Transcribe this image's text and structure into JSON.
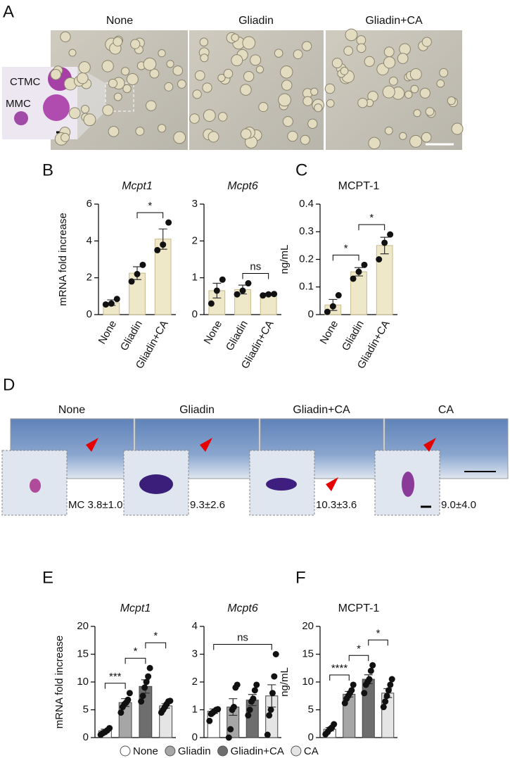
{
  "panel_labels": [
    "A",
    "B",
    "C",
    "D",
    "E",
    "F"
  ],
  "panel_a": {
    "titles": [
      "None",
      "Gliadin",
      "Gliadin+CA"
    ],
    "inset_labels": [
      "CTMC",
      "MMC"
    ]
  },
  "panel_d": {
    "titles": [
      "None",
      "Gliadin",
      "Gliadin+CA",
      "CA"
    ],
    "counts": [
      "MC 3.8±1.0",
      "9.3±2.6",
      "10.3±3.6",
      "9.0±4.0"
    ]
  },
  "legend": {
    "names": [
      "None",
      "Gliadin",
      "Gliadin+CA",
      "CA"
    ],
    "colors": [
      "#ffffff",
      "#a6a6a6",
      "#6e6e6e",
      "#e5e5e5"
    ]
  },
  "chart_data": [
    {
      "type": "bar",
      "title": "Mcpt1",
      "ylabel": "mRNA fold increase",
      "categories": [
        "None",
        "Gliadin",
        "Gliadin+CA"
      ],
      "values": [
        0.65,
        2.25,
        4.1
      ],
      "errors": [
        0.15,
        0.35,
        0.55
      ],
      "points": [
        [
          0.55,
          0.6,
          0.85
        ],
        [
          1.8,
          2.2,
          2.7
        ],
        [
          3.5,
          3.8,
          5.0
        ]
      ],
      "color": "#efe8c8",
      "ylim": [
        0,
        6
      ],
      "yticks": [
        0,
        2,
        4,
        6
      ],
      "significance": [
        {
          "pair": [
            1,
            2
          ],
          "label": "*"
        }
      ]
    },
    {
      "type": "bar",
      "title": "Mcpt6",
      "categories": [
        "None",
        "Gliadin",
        "Gliadin+CA"
      ],
      "values": [
        0.65,
        0.68,
        0.55
      ],
      "errors": [
        0.2,
        0.12,
        0.03
      ],
      "points": [
        [
          0.3,
          0.65,
          0.95
        ],
        [
          0.55,
          0.65,
          0.85
        ],
        [
          0.52,
          0.55,
          0.56
        ]
      ],
      "color": "#efe8c8",
      "ylim": [
        0,
        3
      ],
      "yticks": [
        0,
        1,
        2,
        3
      ],
      "significance": [
        {
          "pair": [
            1,
            2
          ],
          "label": "ns"
        }
      ]
    },
    {
      "type": "bar",
      "title": "MCPT-1",
      "ylabel": "ng/mL",
      "categories": [
        "None",
        "Gliadin",
        "Gliadin+CA"
      ],
      "values": [
        0.035,
        0.155,
        0.25
      ],
      "errors": [
        0.02,
        0.015,
        0.03
      ],
      "points": [
        [
          0.01,
          0.03,
          0.07
        ],
        [
          0.13,
          0.155,
          0.18
        ],
        [
          0.2,
          0.26,
          0.29
        ]
      ],
      "color": "#efe8c8",
      "ylim": [
        0,
        0.4
      ],
      "yticks": [
        0,
        0.1,
        0.2,
        0.3,
        0.4
      ],
      "significance": [
        {
          "pair": [
            0,
            1
          ],
          "label": "*"
        },
        {
          "pair": [
            1,
            2
          ],
          "label": "*"
        }
      ]
    },
    {
      "type": "bar",
      "title": "Mcpt1",
      "ylabel": "mRNA fold increase",
      "values": [
        1.2,
        6.3,
        9.2,
        5.7
      ],
      "errors": [
        0.3,
        0.7,
        1.2,
        0.4
      ],
      "points": [
        [
          0.5,
          0.8,
          1.0,
          1.3,
          1.7
        ],
        [
          4.5,
          5.5,
          6.0,
          6.3,
          6.8,
          8.0
        ],
        [
          6.5,
          7.5,
          9.0,
          10.0,
          11.0,
          12.5
        ],
        [
          4.5,
          5.0,
          5.5,
          6.0,
          6.5,
          6.6
        ]
      ],
      "ylim": [
        0,
        20
      ],
      "yticks": [
        0,
        5,
        10,
        15,
        20
      ],
      "significance": [
        {
          "pair": [
            0,
            1
          ],
          "label": "***"
        },
        {
          "pair": [
            1,
            2
          ],
          "label": "*"
        },
        {
          "pair": [
            2,
            3
          ],
          "label": "*"
        }
      ]
    },
    {
      "type": "bar",
      "title": "Mcpt6",
      "values": [
        0.95,
        1.1,
        1.35,
        1.5
      ],
      "errors": [
        0.08,
        0.3,
        0.2,
        0.4
      ],
      "points": [
        [
          0.6,
          0.85,
          0.9,
          0.95,
          1.0,
          1.02
        ],
        [
          0.0,
          0.3,
          1.0,
          1.1,
          1.8,
          1.9
        ],
        [
          0.8,
          1.0,
          1.3,
          1.4,
          1.7,
          1.9
        ],
        [
          0.1,
          0.8,
          1.0,
          1.6,
          2.2,
          3.0
        ]
      ],
      "ylim": [
        0,
        4
      ],
      "yticks": [
        0,
        1,
        2,
        3,
        4
      ],
      "significance": [
        {
          "pair": [
            0,
            3
          ],
          "label": "ns"
        }
      ]
    },
    {
      "type": "bar",
      "title": "MCPT-1",
      "ylabel": "ng/mL",
      "values": [
        1.5,
        7.8,
        10.5,
        8.0
      ],
      "errors": [
        0.3,
        0.5,
        0.8,
        0.8
      ],
      "points": [
        [
          0.6,
          1.0,
          1.5,
          1.8,
          2.4
        ],
        [
          6.2,
          7.0,
          7.5,
          8.0,
          8.5,
          9.5
        ],
        [
          8.0,
          9.5,
          10.0,
          10.5,
          12.0,
          13.0
        ],
        [
          5.5,
          6.5,
          7.5,
          8.5,
          9.5,
          10.5
        ]
      ],
      "ylim": [
        0,
        20
      ],
      "yticks": [
        0,
        5,
        10,
        15,
        20
      ],
      "significance": [
        {
          "pair": [
            0,
            1
          ],
          "label": "****"
        },
        {
          "pair": [
            1,
            2
          ],
          "label": "*"
        },
        {
          "pair": [
            2,
            3
          ],
          "label": "*"
        }
      ]
    }
  ]
}
